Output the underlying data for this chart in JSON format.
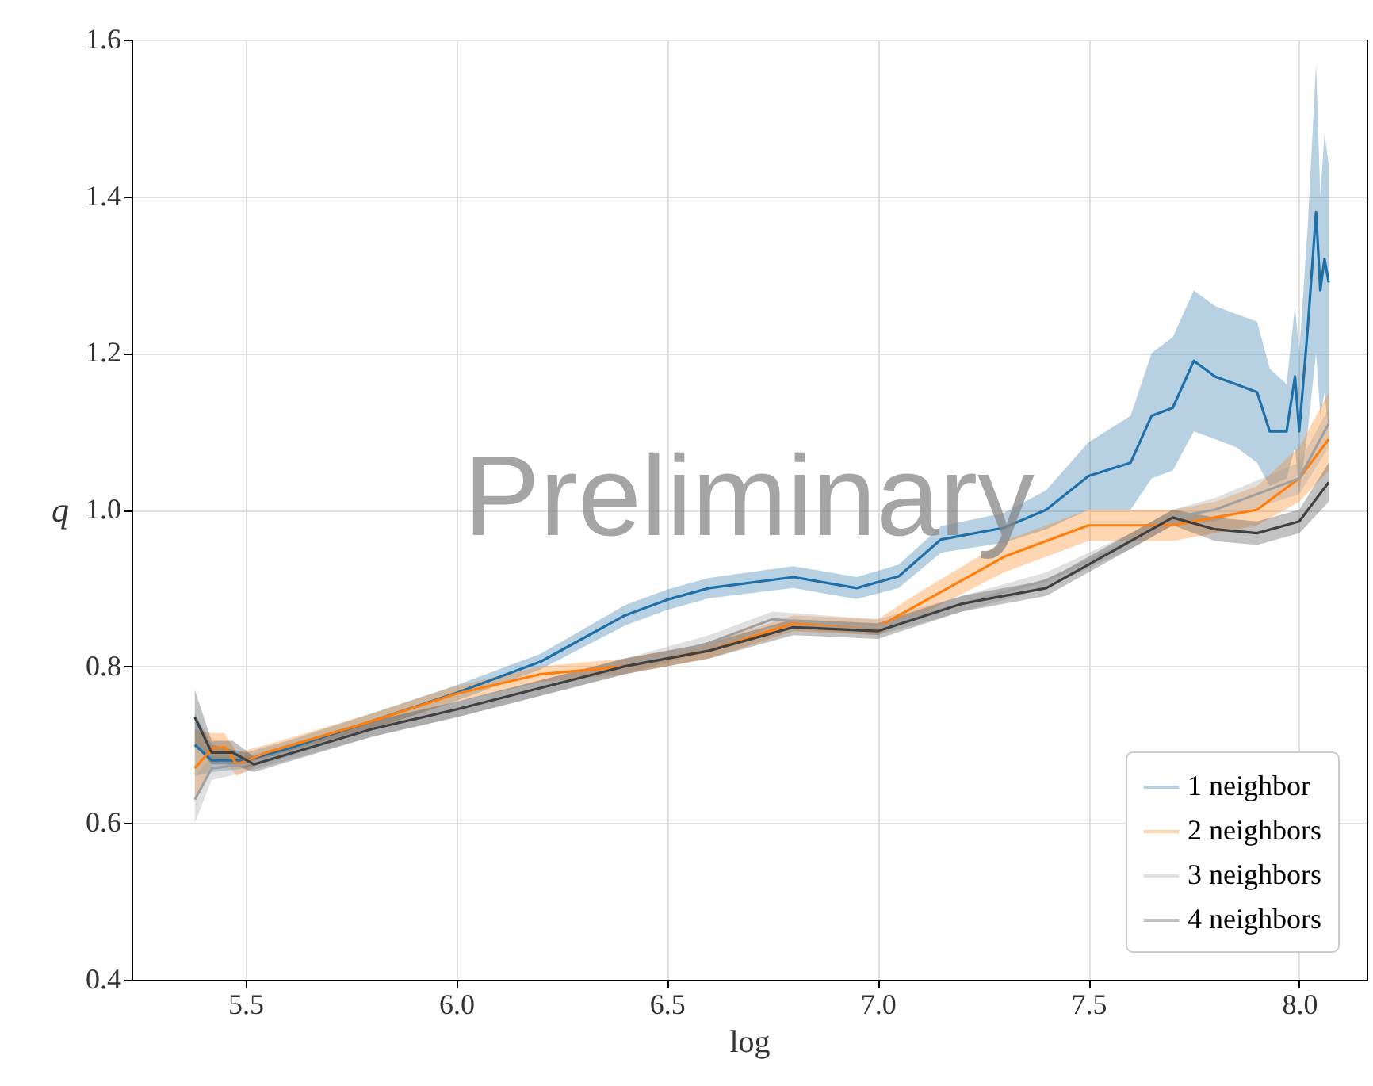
{
  "chart_data": {
    "type": "line",
    "xlabel": "log",
    "ylabel": "q",
    "annotations": [
      "Preliminary"
    ],
    "xlim": [
      5.23,
      8.16
    ],
    "ylim": [
      0.4,
      1.6
    ],
    "xticks": [
      {
        "value": 5.5,
        "label": "5.5"
      },
      {
        "value": 6,
        "label": "6.0"
      },
      {
        "value": 6.5,
        "label": "6.5"
      },
      {
        "value": 7,
        "label": "7.0"
      },
      {
        "value": 7.5,
        "label": "7.5"
      },
      {
        "value": 8,
        "label": "8.0"
      }
    ],
    "yticks": [
      {
        "value": 0.4,
        "label": "0.4"
      },
      {
        "value": 0.6,
        "label": "0.6"
      },
      {
        "value": 0.8,
        "label": "0.8"
      },
      {
        "value": 1,
        "label": "1.0"
      },
      {
        "value": 1.2,
        "label": "1.2"
      },
      {
        "value": 1.4,
        "label": "1.4"
      },
      {
        "value": 1.6,
        "label": "1.6"
      }
    ],
    "grid": true,
    "legend": "bottom right",
    "line_style": "solid",
    "marker": "none",
    "series": [
      {
        "name": "1 neighbor",
        "color": "#1f6fa8",
        "x": [
          5.38,
          5.42,
          5.5,
          5.6,
          5.8,
          6.0,
          6.2,
          6.4,
          6.5,
          6.6,
          6.8,
          6.95,
          7.05,
          7.15,
          7.3,
          7.4,
          7.5,
          7.6,
          7.65,
          7.7,
          7.75,
          7.8,
          7.85,
          7.9,
          7.93,
          7.97,
          7.99,
          8.0,
          8.02,
          8.04,
          8.05,
          8.06,
          8.07
        ],
        "values": [
          0.7,
          0.68,
          0.68,
          0.695,
          0.73,
          0.766,
          0.806,
          0.865,
          0.885,
          0.9,
          0.914,
          0.9,
          0.915,
          0.962,
          0.977,
          1.0,
          1.043,
          1.06,
          1.12,
          1.13,
          1.19,
          1.17,
          1.16,
          1.15,
          1.1,
          1.1,
          1.17,
          1.1,
          1.23,
          1.38,
          1.28,
          1.32,
          1.29
        ],
        "lower": [
          0.66,
          0.665,
          0.67,
          0.685,
          0.72,
          0.756,
          0.796,
          0.852,
          0.872,
          0.887,
          0.9,
          0.886,
          0.9,
          0.945,
          0.958,
          0.975,
          1.0,
          1.0,
          1.04,
          1.05,
          1.1,
          1.09,
          1.08,
          1.06,
          1.03,
          1.04,
          1.08,
          1.02,
          1.1,
          1.2,
          1.12,
          1.15,
          1.1
        ],
        "upper": [
          0.74,
          0.7,
          0.69,
          0.705,
          0.74,
          0.776,
          0.816,
          0.878,
          0.898,
          0.913,
          0.928,
          0.914,
          0.93,
          0.979,
          0.996,
          1.025,
          1.086,
          1.12,
          1.2,
          1.22,
          1.28,
          1.26,
          1.25,
          1.24,
          1.18,
          1.16,
          1.26,
          1.2,
          1.36,
          1.57,
          1.4,
          1.48,
          1.44
        ]
      },
      {
        "name": "2 neighbors",
        "color": "#ff7f0e",
        "x": [
          5.38,
          5.42,
          5.45,
          5.48,
          5.55,
          5.8,
          6.0,
          6.2,
          6.4,
          6.6,
          6.8,
          7.0,
          7.1,
          7.3,
          7.5,
          7.7,
          7.8,
          7.9,
          8.0,
          8.07
        ],
        "values": [
          0.67,
          0.695,
          0.697,
          0.675,
          0.69,
          0.73,
          0.765,
          0.79,
          0.8,
          0.82,
          0.855,
          0.85,
          0.88,
          0.94,
          0.98,
          0.98,
          0.99,
          1.0,
          1.04,
          1.09
        ],
        "lower": [
          0.63,
          0.675,
          0.68,
          0.66,
          0.68,
          0.72,
          0.755,
          0.78,
          0.79,
          0.81,
          0.845,
          0.84,
          0.865,
          0.92,
          0.96,
          0.96,
          0.97,
          0.98,
          1.01,
          1.05
        ],
        "upper": [
          0.72,
          0.715,
          0.715,
          0.69,
          0.7,
          0.74,
          0.775,
          0.8,
          0.81,
          0.83,
          0.865,
          0.86,
          0.895,
          0.96,
          1.0,
          1.0,
          1.01,
          1.03,
          1.08,
          1.15
        ]
      },
      {
        "name": "3 neighbors",
        "color": "#a0a0a0",
        "x": [
          5.38,
          5.42,
          5.5,
          5.8,
          6.0,
          6.4,
          6.6,
          6.75,
          7.0,
          7.2,
          7.4,
          7.6,
          7.7,
          7.8,
          8.0,
          8.07
        ],
        "values": [
          0.63,
          0.67,
          0.675,
          0.72,
          0.745,
          0.8,
          0.83,
          0.86,
          0.85,
          0.88,
          0.91,
          0.96,
          0.99,
          1.0,
          1.04,
          1.11
        ],
        "lower": [
          0.6,
          0.655,
          0.665,
          0.71,
          0.735,
          0.79,
          0.82,
          0.85,
          0.84,
          0.87,
          0.9,
          0.95,
          0.98,
          0.985,
          1.02,
          1.08
        ],
        "upper": [
          0.66,
          0.685,
          0.685,
          0.73,
          0.755,
          0.81,
          0.84,
          0.87,
          0.86,
          0.89,
          0.92,
          0.97,
          1.0,
          1.015,
          1.06,
          1.13
        ]
      },
      {
        "name": "4 neighbors",
        "color": "#404040",
        "x": [
          5.38,
          5.42,
          5.47,
          5.52,
          5.8,
          6.0,
          6.4,
          6.6,
          6.8,
          7.0,
          7.2,
          7.4,
          7.6,
          7.7,
          7.8,
          7.9,
          8.0,
          8.07
        ],
        "values": [
          0.735,
          0.69,
          0.69,
          0.675,
          0.72,
          0.745,
          0.8,
          0.82,
          0.85,
          0.845,
          0.88,
          0.9,
          0.96,
          0.99,
          0.975,
          0.97,
          0.985,
          1.035
        ],
        "lower": [
          0.7,
          0.675,
          0.675,
          0.665,
          0.71,
          0.735,
          0.79,
          0.81,
          0.84,
          0.835,
          0.87,
          0.89,
          0.95,
          0.98,
          0.96,
          0.955,
          0.97,
          1.01
        ],
        "upper": [
          0.77,
          0.705,
          0.705,
          0.685,
          0.73,
          0.755,
          0.81,
          0.83,
          0.86,
          0.855,
          0.89,
          0.91,
          0.97,
          1.0,
          0.99,
          0.985,
          1.0,
          1.06
        ]
      }
    ]
  }
}
